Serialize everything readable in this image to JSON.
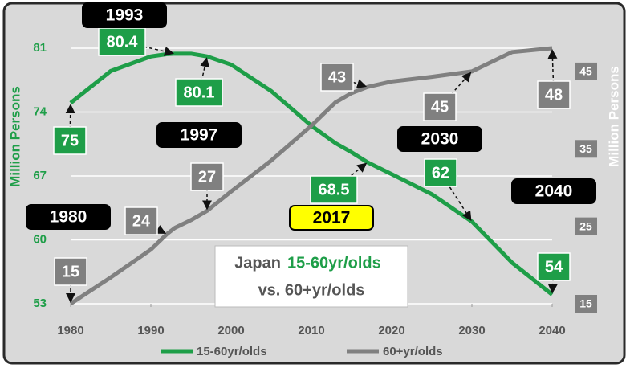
{
  "chart_data": {
    "type": "line",
    "title": [
      "Japan",
      "15-60yr/olds",
      "vs. 60+yr/olds"
    ],
    "ylabel": "Million Persons",
    "y2label": "Million Persons",
    "x": [
      1980,
      1985,
      1990,
      1992,
      1993,
      1995,
      1997,
      2000,
      2005,
      2010,
      2013,
      2015,
      2017,
      2020,
      2025,
      2030,
      2035,
      2040
    ],
    "xlim": [
      1980,
      2040
    ],
    "xticks": [
      1980,
      1990,
      2000,
      2010,
      2020,
      2030,
      2040
    ],
    "ylim": [
      53,
      81
    ],
    "yticks": [
      53,
      60,
      67,
      74,
      81
    ],
    "y2lim": [
      15,
      48
    ],
    "y2ticks": [
      15,
      25,
      35,
      45
    ],
    "grid": true,
    "legend": "bottom",
    "series": [
      {
        "name": "15-60yr/olds",
        "color": "#1e9e48",
        "values": [
          75,
          78.5,
          80.1,
          80.35,
          80.4,
          80.4,
          80.1,
          79.2,
          76.3,
          72.5,
          70.6,
          69.6,
          68.5,
          67.2,
          65,
          62,
          57.5,
          54
        ],
        "annotations": [
          {
            "x": 1980,
            "value": 75
          },
          {
            "x": 1993,
            "value": 80.4
          },
          {
            "x": 1997,
            "value": 80.1
          },
          {
            "x": 2017,
            "value": 68.5
          },
          {
            "x": 2030,
            "value": 62
          },
          {
            "x": 2040,
            "value": 54
          }
        ]
      },
      {
        "name": "60+yr/olds",
        "color": "#808080",
        "axis": "y2",
        "values": [
          15,
          18.4,
          22,
          24,
          24.8,
          25.8,
          27,
          29.5,
          33.5,
          38,
          41,
          42.2,
          43,
          43.7,
          44.3,
          45,
          47.5,
          48
        ],
        "annotations": [
          {
            "x": 1980,
            "value": 15
          },
          {
            "x": 1992,
            "value": 24
          },
          {
            "x": 1997,
            "value": 27
          },
          {
            "x": 2017,
            "value": 43
          },
          {
            "x": 2030,
            "value": 45
          },
          {
            "x": 2040,
            "value": 48
          }
        ]
      }
    ],
    "year_callouts": [
      {
        "year": 1993
      },
      {
        "year": 1997
      },
      {
        "year": 1980
      },
      {
        "year": 2017,
        "color": "#ffff00"
      },
      {
        "year": 2030
      },
      {
        "year": 2040
      }
    ]
  }
}
